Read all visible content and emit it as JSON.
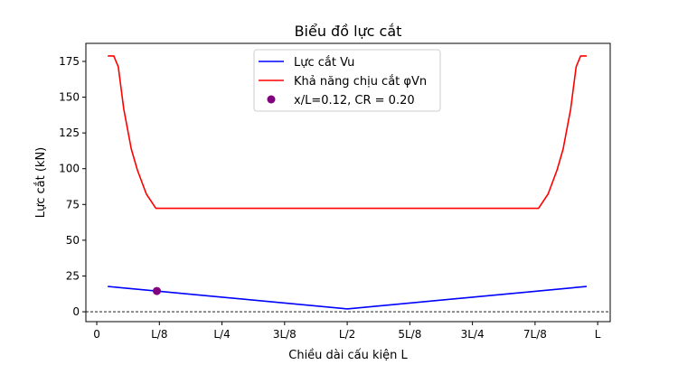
{
  "chart_data": {
    "type": "line",
    "title": "Biểu đồ lực cắt",
    "xlabel": "Chiều dài cấu kiện L",
    "ylabel": "Lực cắt (kN)",
    "xlim": [
      -0.0217,
      1.025
    ],
    "ylim": [
      -6.9,
      187.6
    ],
    "x_ticks": [
      {
        "value": 0,
        "label": "0"
      },
      {
        "value": 0.125,
        "label": "L/8"
      },
      {
        "value": 0.25,
        "label": "L/4"
      },
      {
        "value": 0.375,
        "label": "3L/8"
      },
      {
        "value": 0.5,
        "label": "L/2"
      },
      {
        "value": 0.625,
        "label": "5L/8"
      },
      {
        "value": 0.75,
        "label": "3L/4"
      },
      {
        "value": 0.875,
        "label": "7L/8"
      },
      {
        "value": 1,
        "label": "L"
      }
    ],
    "y_ticks": [
      0,
      25,
      50,
      75,
      100,
      125,
      150,
      175
    ],
    "legend_position": "top-center",
    "series": [
      {
        "name": "Lực cắt Vu",
        "color": "#0000ff",
        "x": [
          0.022,
          0.5,
          0.978
        ],
        "y": [
          17.7,
          2.0,
          17.7
        ]
      },
      {
        "name": "Khả năng chịu cắt φVn",
        "color": "#ff0000",
        "x": [
          0.022,
          0.034,
          0.043,
          0.054,
          0.069,
          0.081,
          0.099,
          0.118,
          0.882,
          0.901,
          0.919,
          0.931,
          0.946,
          0.957,
          0.966,
          0.978
        ],
        "y": [
          178.8,
          178.8,
          171.2,
          141.5,
          113.7,
          99.2,
          82.3,
          72.3,
          72.3,
          82.3,
          99.2,
          113.7,
          141.5,
          171.2,
          178.8,
          178.8
        ]
      }
    ],
    "point": {
      "name": "x/L=0.12, CR = 0.20",
      "color": "#800080",
      "x": 0.12,
      "y": 14.5
    },
    "reference_line": {
      "y": 0,
      "style": "dashed",
      "color": "#000000"
    }
  }
}
